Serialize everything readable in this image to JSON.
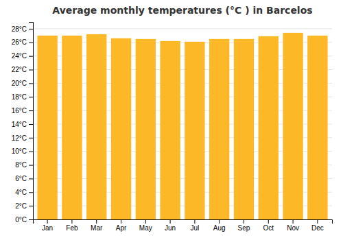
{
  "chart_data": {
    "type": "bar",
    "title": "Average monthly temperatures (°C ) in Barcelos",
    "categories": [
      "Jan",
      "Feb",
      "Mar",
      "Apr",
      "May",
      "Jun",
      "Jul",
      "Aug",
      "Sep",
      "Oct",
      "Nov",
      "Dec"
    ],
    "values": [
      27.0,
      27.0,
      27.2,
      26.6,
      26.5,
      26.2,
      26.1,
      26.5,
      26.5,
      26.9,
      27.4,
      27.0
    ],
    "color": "#FDB827",
    "ylim": [
      0,
      29
    ],
    "yticks": [
      {
        "value": 0,
        "label": "0°C"
      },
      {
        "value": 2,
        "label": "2°C"
      },
      {
        "value": 4,
        "label": "4°C"
      },
      {
        "value": 6,
        "label": "6°C"
      },
      {
        "value": 8,
        "label": "8°C"
      },
      {
        "value": 10,
        "label": "10°C"
      },
      {
        "value": 12,
        "label": "12°C"
      },
      {
        "value": 14,
        "label": "14°C"
      },
      {
        "value": 16,
        "label": "16°C"
      },
      {
        "value": 18,
        "label": "18°C"
      },
      {
        "value": 20,
        "label": "20°C"
      },
      {
        "value": 22,
        "label": "22°C"
      },
      {
        "value": 24,
        "label": "24°C"
      },
      {
        "value": 26,
        "label": "26°C"
      },
      {
        "value": 28,
        "label": "28°C"
      }
    ],
    "grid": true
  }
}
